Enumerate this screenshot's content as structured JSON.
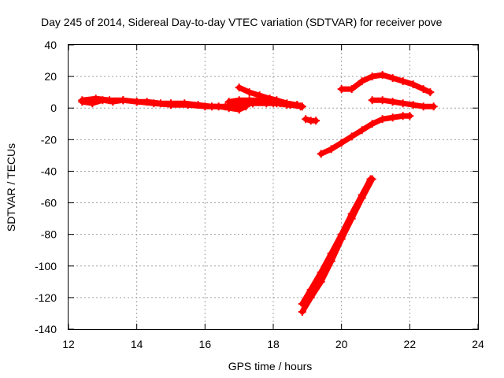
{
  "chart_data": {
    "type": "scatter",
    "title": "Day 245 of 2014, Sidereal Day-to-day VTEC variation (SDTVAR) for receiver pove",
    "xlabel": "GPS time / hours",
    "ylabel": "SDTVAR / TECUs",
    "xlim": [
      12,
      24
    ],
    "ylim": [
      -140,
      40
    ],
    "xticks": [
      12,
      14,
      16,
      18,
      20,
      22,
      24
    ],
    "yticks": [
      -140,
      -120,
      -100,
      -80,
      -60,
      -40,
      -20,
      0,
      20,
      40
    ],
    "grid": true,
    "marker": "plus",
    "series_color": "#ff0000",
    "series": [
      {
        "name": "pass-1",
        "x": [
          12.4,
          12.7,
          13.0,
          13.3,
          13.6,
          14.0,
          14.3,
          14.7,
          15.0,
          15.4,
          15.8,
          16.2,
          16.6,
          17.0,
          17.4,
          17.8,
          18.1,
          18.4,
          18.7,
          18.85
        ],
        "y": [
          4,
          3,
          5,
          4,
          5,
          4,
          4,
          3,
          3,
          3,
          2,
          1,
          1,
          2,
          3,
          3,
          3,
          2,
          2,
          1
        ]
      },
      {
        "name": "pass-2",
        "x": [
          12.4,
          12.8,
          13.2,
          13.6,
          14.0,
          14.5,
          15.0,
          15.5,
          16.0,
          16.4,
          16.7,
          17.0,
          17.2
        ],
        "y": [
          5,
          6,
          5,
          5,
          4,
          3,
          2,
          2,
          1,
          1,
          0,
          -1,
          1
        ]
      },
      {
        "name": "pass-3",
        "x": [
          16.7,
          17.0,
          17.3,
          17.6,
          17.9,
          18.2,
          18.5,
          18.8
        ],
        "y": [
          4,
          5,
          5,
          5,
          4,
          3,
          2,
          1
        ]
      },
      {
        "name": "pass-4",
        "x": [
          17.0,
          17.3,
          17.6,
          17.9,
          18.1,
          18.4,
          18.7
        ],
        "y": [
          13,
          10,
          8,
          6,
          5,
          3,
          2
        ]
      },
      {
        "name": "pass-5",
        "x": [
          16.8,
          17.1,
          17.4,
          17.7,
          18.0,
          18.3
        ],
        "y": [
          3,
          2,
          3,
          4,
          3,
          3
        ]
      },
      {
        "name": "pass-6",
        "x": [
          18.95,
          19.1,
          19.25
        ],
        "y": [
          -7,
          -8,
          -8
        ]
      },
      {
        "name": "pass-7",
        "x": [
          20.0,
          20.3,
          20.6,
          20.9,
          21.2,
          21.5,
          21.8,
          22.1,
          22.4,
          22.6
        ],
        "y": [
          12,
          12,
          17,
          20,
          21,
          19,
          17,
          15,
          12,
          10
        ]
      },
      {
        "name": "pass-8",
        "x": [
          20.9,
          21.2,
          21.5,
          21.8,
          22.1,
          22.4,
          22.7
        ],
        "y": [
          5,
          5,
          4,
          3,
          2,
          1,
          1
        ]
      },
      {
        "name": "pass-9",
        "x": [
          19.4,
          19.7,
          20.0,
          20.3,
          20.6,
          20.9,
          21.2,
          21.5,
          21.8,
          22.0
        ],
        "y": [
          -29,
          -26,
          -22,
          -18,
          -14,
          -10,
          -7,
          -6,
          -5,
          -5
        ]
      },
      {
        "name": "pass-10",
        "x": [
          18.85,
          19.1,
          19.4,
          19.7,
          20.0,
          20.3,
          20.6,
          20.85
        ],
        "y": [
          -124,
          -115,
          -104,
          -92,
          -80,
          -67,
          -55,
          -45
        ]
      },
      {
        "name": "pass-11",
        "x": [
          18.85,
          19.1,
          19.4,
          19.7,
          20.0,
          20.3,
          20.6,
          20.9
        ],
        "y": [
          -129,
          -120,
          -110,
          -97,
          -83,
          -70,
          -57,
          -45
        ]
      }
    ]
  }
}
